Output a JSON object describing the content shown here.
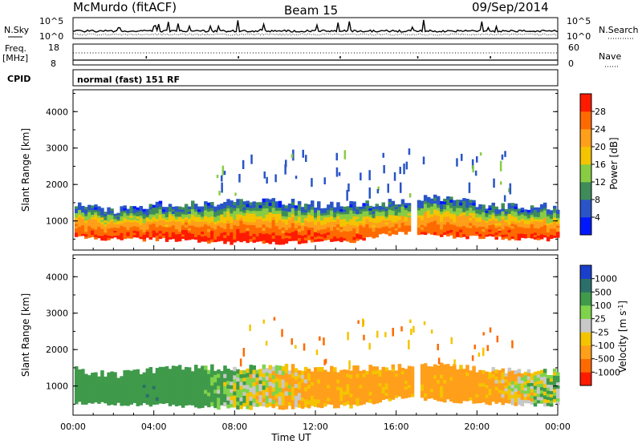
{
  "header": {
    "station": "McMurdo (fitACF)",
    "beam": "Beam 15",
    "date": "09/Sep/2014"
  },
  "noise_panel": {
    "left_label": "N.Sky",
    "right_label": "N.Search",
    "left_ticks": [
      "10^5",
      "10^0"
    ],
    "right_ticks": [
      "10^5",
      "10^0"
    ]
  },
  "freq_panel": {
    "left_label_line1": "Freq.",
    "left_label_line2": "[MHz]",
    "right_label": "Nave",
    "left_ticks": [
      "18",
      "8"
    ],
    "right_ticks": [
      "60",
      "0"
    ]
  },
  "cpid": {
    "label": "CPID",
    "value": "normal (fast) 151 RF"
  },
  "power_panel": {
    "ylabel": "Slant Range [km]",
    "yticks": [
      "1000",
      "2000",
      "3000",
      "4000"
    ],
    "colorbar_label": "Power [dB]",
    "colorbar_ticks": [
      "4",
      "8",
      "12",
      "16",
      "20",
      "24",
      "28"
    ],
    "colors": [
      "#0018ff",
      "#2a55c8",
      "#3f8c5a",
      "#88cc44",
      "#f4c400",
      "#ff9f1a",
      "#ff6a00",
      "#ff1a00"
    ]
  },
  "velocity_panel": {
    "ylabel": "Slant Range [km]",
    "yticks": [
      "1000",
      "2000",
      "3000",
      "4000"
    ],
    "colorbar_label": "Velocity [m s",
    "colorbar_sup": "-1",
    "colorbar_label_end": "]",
    "colorbar_ticks": [
      "1000",
      "500",
      "100",
      "25",
      "-25",
      "-100",
      "-500",
      "-1000"
    ],
    "colors": [
      "#1a3fcc",
      "#2c6f6a",
      "#3f9a4a",
      "#7fd34a",
      "#c8c8c8",
      "#f4c400",
      "#ff9f1a",
      "#ff6a00",
      "#ff1a00"
    ]
  },
  "x_axis": {
    "label": "Time UT",
    "ticks": [
      "00:00",
      "04:00",
      "08:00",
      "12:00",
      "16:00",
      "20:00",
      "00:00"
    ]
  },
  "chart_data": {
    "type": "heatmap",
    "title": "McMurdo (fitACF)",
    "subtitle": "Beam 15 09/Sep/2014",
    "xlabel": "Time UT",
    "ylabel": "Slant Range [km]",
    "xlim": [
      0,
      24
    ],
    "ylim": [
      200,
      4600
    ],
    "power_db": {
      "colorbar_range": [
        0,
        30
      ],
      "scatter_band": [
        {
          "t": 0,
          "lower": 550,
          "upper": 1450,
          "core_db": 26
        },
        {
          "t": 2,
          "lower": 500,
          "upper": 1300,
          "core_db": 27
        },
        {
          "t": 4,
          "lower": 500,
          "upper": 1450,
          "core_db": 27
        },
        {
          "t": 6,
          "lower": 450,
          "upper": 1500,
          "core_db": 28
        },
        {
          "t": 8,
          "lower": 400,
          "upper": 1500,
          "core_db": 28
        },
        {
          "t": 10,
          "lower": 400,
          "upper": 1550,
          "core_db": 28
        },
        {
          "t": 12,
          "lower": 450,
          "upper": 1450,
          "core_db": 27
        },
        {
          "t": 14,
          "lower": 450,
          "upper": 1500,
          "core_db": 26
        },
        {
          "t": 16,
          "lower": 700,
          "upper": 1500,
          "core_db": 24
        },
        {
          "t": 18,
          "lower": 600,
          "upper": 1650,
          "core_db": 26
        },
        {
          "t": 20,
          "lower": 550,
          "upper": 1450,
          "core_db": 26
        },
        {
          "t": 22,
          "lower": 500,
          "upper": 1400,
          "core_db": 27
        },
        {
          "t": 24,
          "lower": 500,
          "upper": 1400,
          "core_db": 26
        }
      ]
    },
    "velocity_ms": {
      "colorbar_range": [
        -1000,
        1000
      ],
      "scatter_band": [
        {
          "t": 0,
          "lower": 550,
          "upper": 1450,
          "velocity": 300
        },
        {
          "t": 4,
          "lower": 500,
          "upper": 1450,
          "velocity": 400
        },
        {
          "t": 8,
          "lower": 450,
          "upper": 1450,
          "velocity": 50
        },
        {
          "t": 12,
          "lower": 450,
          "upper": 1450,
          "velocity": -150
        },
        {
          "t": 16,
          "lower": 700,
          "upper": 1500,
          "velocity": -200
        },
        {
          "t": 20,
          "lower": 550,
          "upper": 1450,
          "velocity": -200
        },
        {
          "t": 24,
          "lower": 550,
          "upper": 1400,
          "velocity": 100
        }
      ]
    }
  }
}
